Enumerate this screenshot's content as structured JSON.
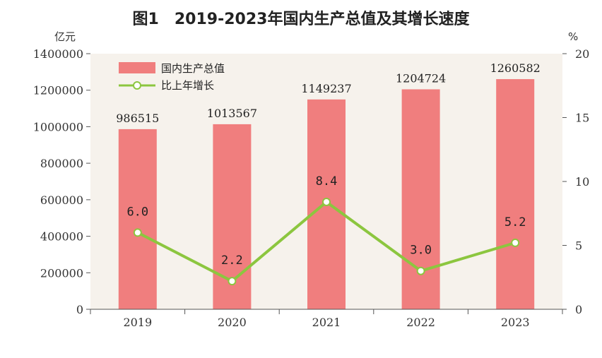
{
  "chart_data": {
    "type": "bar",
    "title": "图1　2019-2023年国内生产总值及其增长速度",
    "left_unit": "亿元",
    "right_unit": "%",
    "categories": [
      "2019",
      "2020",
      "2021",
      "2022",
      "2023"
    ],
    "series": [
      {
        "name": "国内生产总值",
        "type": "bar",
        "axis": "left",
        "color": "#f07e7e",
        "values": [
          986515,
          1013567,
          1149237,
          1204724,
          1260582
        ]
      },
      {
        "name": "比上年增长",
        "type": "line",
        "axis": "right",
        "color": "#8cc63f",
        "values": [
          6.0,
          2.2,
          8.4,
          3.0,
          5.2
        ],
        "labels": [
          "6.0",
          "2.2",
          "8.4",
          "3.0",
          "5.2"
        ]
      }
    ],
    "ylim_left": [
      0,
      1400000
    ],
    "yticks_left": [
      "0",
      "200000",
      "400000",
      "600000",
      "800000",
      "1000000",
      "1200000",
      "1400000"
    ],
    "ylim_right": [
      0,
      20
    ],
    "yticks_right": [
      "0",
      "5",
      "10",
      "15",
      "20"
    ],
    "legend_position": "top-left",
    "grid": false
  }
}
